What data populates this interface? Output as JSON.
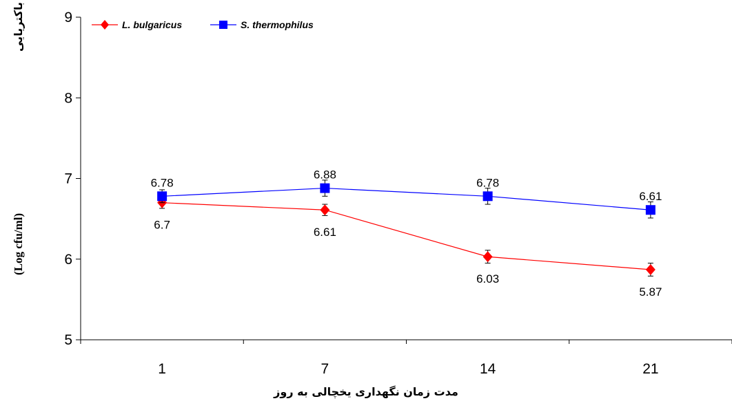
{
  "chart_data": {
    "type": "line",
    "categories": [
      "1",
      "7",
      "14",
      "21"
    ],
    "series": [
      {
        "name": "L. bulgaricus",
        "values": [
          6.7,
          6.61,
          6.03,
          5.87
        ],
        "labels": [
          "6.7",
          "6.61",
          "6.03",
          "5.87"
        ],
        "error": [
          0.07,
          0.07,
          0.08,
          0.08
        ],
        "color": "#ff0000",
        "marker": "diamond",
        "label_position": "below"
      },
      {
        "name": "S. thermophilus",
        "values": [
          6.78,
          6.88,
          6.78,
          6.61
        ],
        "labels": [
          "6.78",
          "6.88",
          "6.78",
          "6.61"
        ],
        "error": [
          0.08,
          0.1,
          0.1,
          0.1
        ],
        "color": "#0000ff",
        "marker": "square",
        "label_position": "above"
      }
    ],
    "xlabel": "مدت زمان نگهداری یخچالی به روز",
    "ylabel_text": "شمارش باکتریایی",
    "ylabel_unit": "(Log cfu/ml)",
    "ylim": [
      5,
      9
    ],
    "yticks": [
      "5",
      "6",
      "7",
      "8",
      "9"
    ],
    "grid": false,
    "legend_position": "top-left"
  }
}
